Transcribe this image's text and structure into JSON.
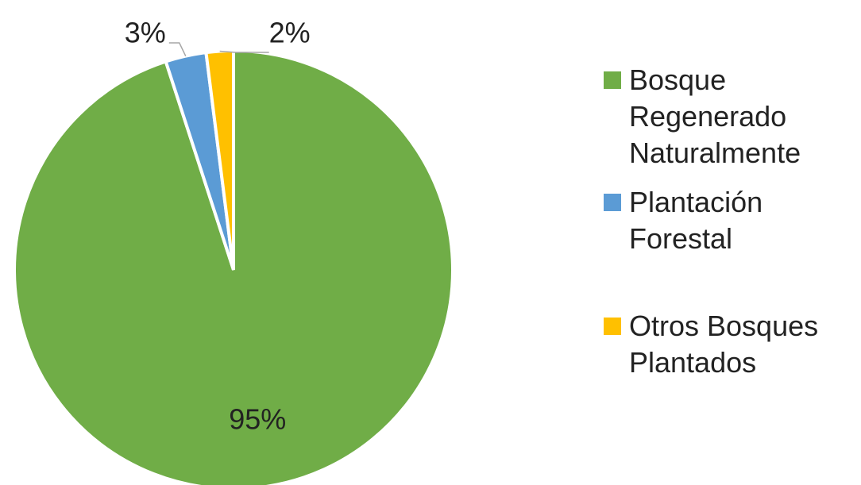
{
  "chart_data": {
    "type": "pie",
    "categories": [
      "Bosque Regenerado Naturalmente",
      "Plantación Forestal",
      "Otros Bosques Plantados"
    ],
    "values": [
      95,
      3,
      2
    ],
    "value_labels": [
      "95%",
      "3%",
      "2%"
    ],
    "colors": [
      "#70ad47",
      "#5b9bd5",
      "#ffc000"
    ],
    "legend": "right"
  }
}
